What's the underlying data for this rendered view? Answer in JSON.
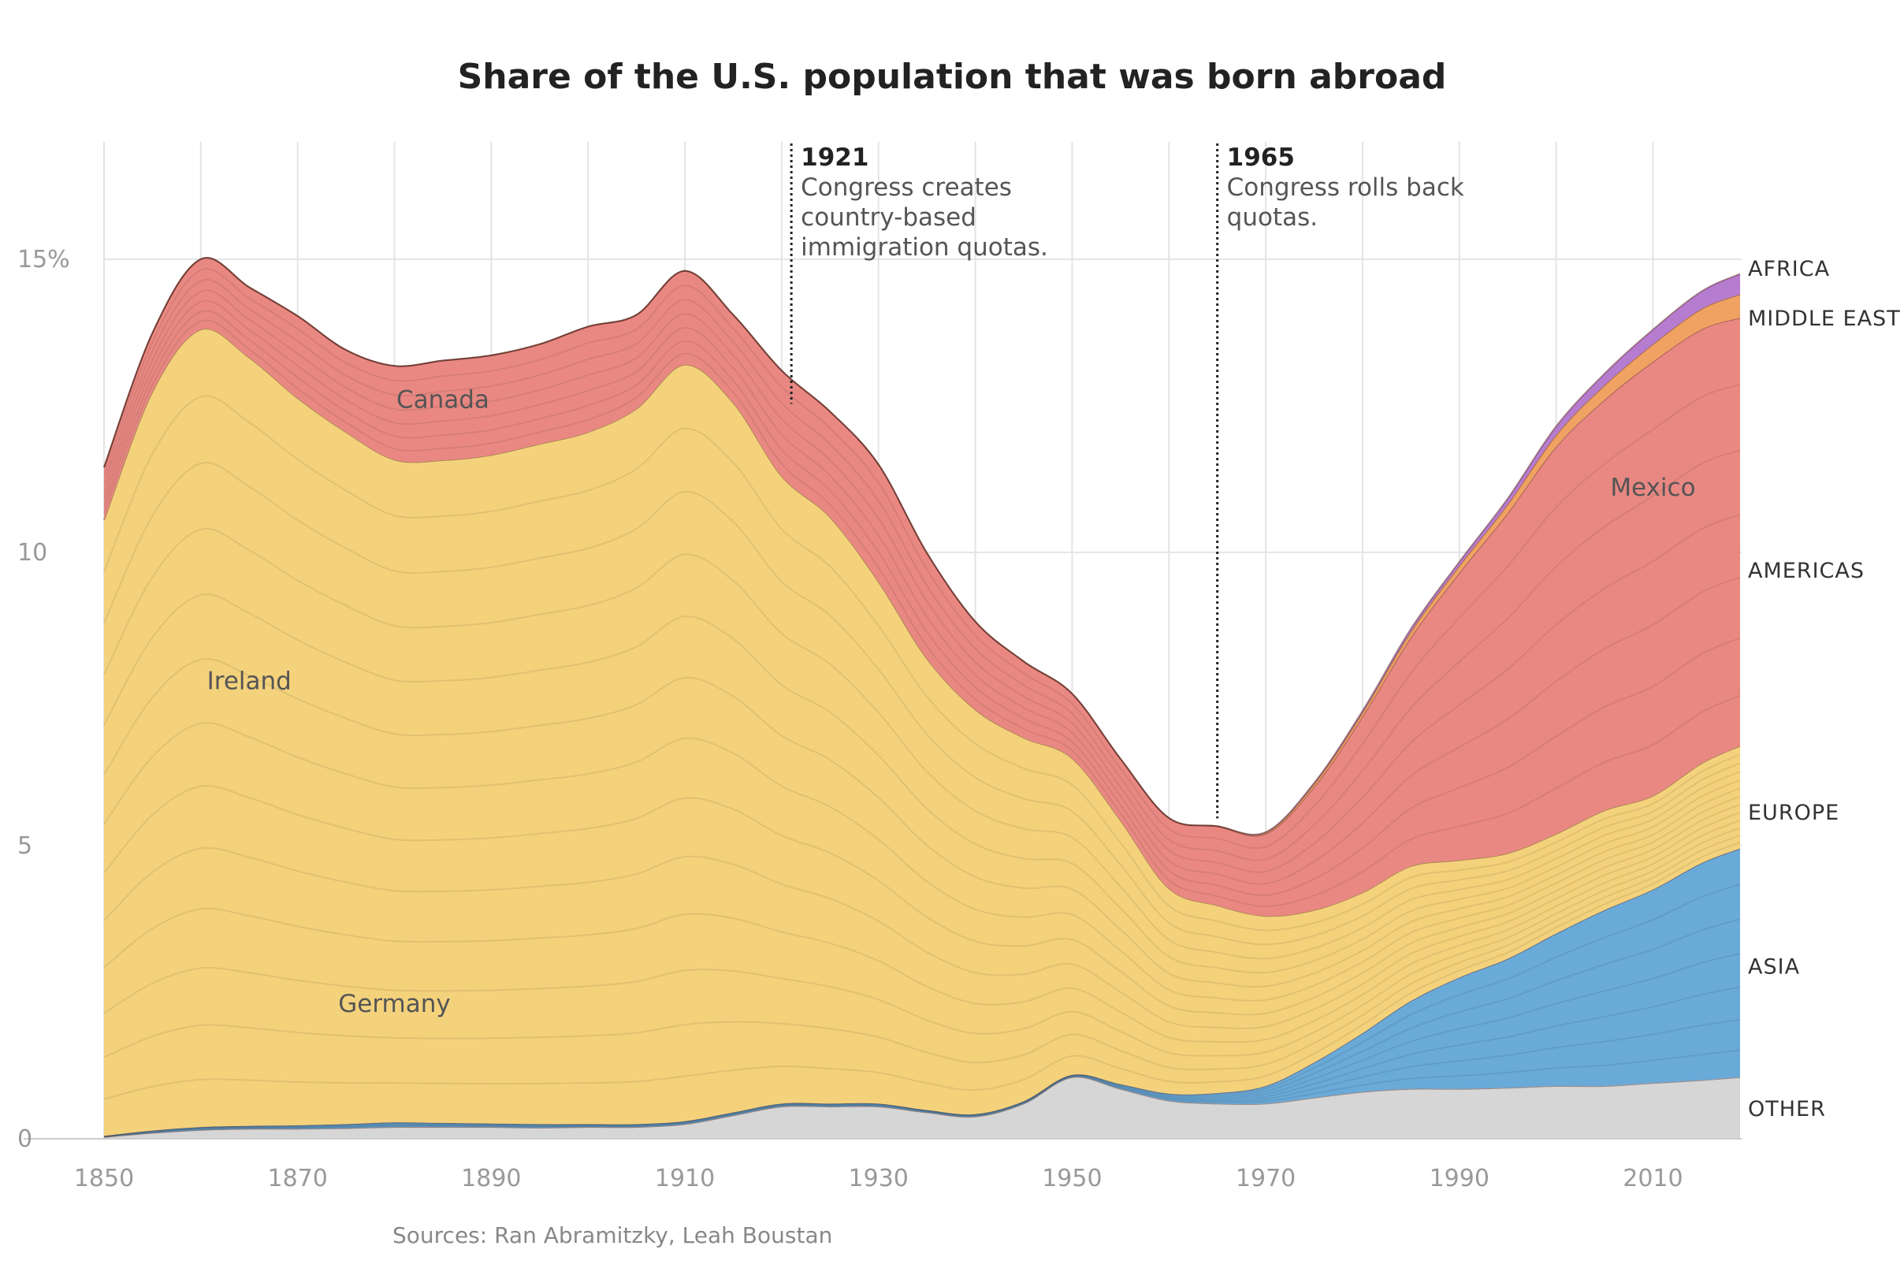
{
  "chart_data": {
    "type": "area",
    "stacked": true,
    "title": "Share of the U.S. population that was born abroad",
    "source": "Sources: Ran Abramitzky, Leah Boustan",
    "x": [
      1850,
      1855,
      1860,
      1865,
      1870,
      1875,
      1880,
      1885,
      1890,
      1895,
      1900,
      1905,
      1910,
      1915,
      1920,
      1925,
      1930,
      1935,
      1940,
      1945,
      1950,
      1955,
      1960,
      1965,
      1970,
      1975,
      1980,
      1985,
      1990,
      1995,
      2000,
      2005,
      2010,
      2015,
      2019
    ],
    "xlim": [
      1850,
      2019
    ],
    "ylim": [
      0,
      17
    ],
    "x_ticks": [
      "1850",
      "1870",
      "1890",
      "1910",
      "1930",
      "1950",
      "1970",
      "1990",
      "2010"
    ],
    "y_ticks": [
      {
        "value": 0,
        "label": "0"
      },
      {
        "value": 5,
        "label": "5"
      },
      {
        "value": 10,
        "label": "10"
      },
      {
        "value": 15,
        "label": "15%"
      }
    ],
    "grid": true,
    "series": [
      {
        "name": "OTHER",
        "color": "#d6d6d6",
        "values": [
          0.03,
          0.1,
          0.15,
          0.17,
          0.17,
          0.18,
          0.2,
          0.2,
          0.2,
          0.19,
          0.2,
          0.2,
          0.25,
          0.4,
          0.55,
          0.55,
          0.55,
          0.45,
          0.38,
          0.6,
          1.05,
          0.85,
          0.65,
          0.6,
          0.6,
          0.7,
          0.8,
          0.85,
          0.85,
          0.87,
          0.9,
          0.9,
          0.95,
          1.0,
          1.05
        ]
      },
      {
        "name": "ASIA",
        "color": "#6aaad8",
        "values": [
          0.02,
          0.04,
          0.05,
          0.05,
          0.06,
          0.07,
          0.08,
          0.07,
          0.06,
          0.06,
          0.05,
          0.05,
          0.05,
          0.05,
          0.05,
          0.05,
          0.05,
          0.04,
          0.04,
          0.04,
          0.04,
          0.08,
          0.12,
          0.18,
          0.3,
          0.6,
          1.0,
          1.5,
          1.9,
          2.2,
          2.6,
          3.0,
          3.3,
          3.7,
          3.9
        ]
      },
      {
        "name": "EUROPE",
        "color": "#f4d27c",
        "values": [
          10.5,
          12.6,
          13.6,
          13.1,
          12.4,
          11.8,
          11.3,
          11.3,
          11.4,
          11.6,
          11.8,
          12.2,
          12.9,
          12.1,
          10.7,
          10.0,
          8.9,
          7.7,
          6.9,
          6.2,
          5.4,
          4.5,
          3.5,
          3.2,
          2.9,
          2.6,
          2.4,
          2.3,
          2.0,
          1.8,
          1.7,
          1.7,
          1.6,
          1.7,
          1.75
        ]
      },
      {
        "name": "AMERICAS",
        "color": "#e98882",
        "values": [
          0.9,
          1.0,
          1.2,
          1.2,
          1.4,
          1.4,
          1.6,
          1.7,
          1.7,
          1.7,
          1.8,
          1.6,
          1.6,
          1.5,
          1.8,
          1.8,
          2.0,
          1.8,
          1.5,
          1.3,
          1.1,
          1.05,
          1.2,
          1.35,
          1.4,
          2.1,
          3.0,
          3.9,
          4.9,
          5.8,
          6.6,
          7.0,
          7.4,
          7.4,
          7.3
        ]
      },
      {
        "name": "MIDDLE EAST",
        "color": "#efa262",
        "values": [
          0,
          0,
          0,
          0,
          0,
          0,
          0,
          0,
          0,
          0,
          0,
          0,
          0,
          0,
          0,
          0,
          0,
          0,
          0,
          0,
          0,
          0,
          0,
          0,
          0.02,
          0.05,
          0.07,
          0.1,
          0.12,
          0.15,
          0.2,
          0.25,
          0.3,
          0.35,
          0.4
        ]
      },
      {
        "name": "AFRICA",
        "color": "#b67cd0",
        "values": [
          0,
          0,
          0,
          0,
          0,
          0,
          0,
          0,
          0,
          0,
          0,
          0,
          0,
          0,
          0,
          0,
          0,
          0,
          0,
          0,
          0,
          0,
          0,
          0,
          0.01,
          0.02,
          0.03,
          0.05,
          0.07,
          0.1,
          0.15,
          0.2,
          0.25,
          0.3,
          0.35
        ]
      }
    ],
    "inline_labels": [
      {
        "text": "Canada",
        "x": 1885,
        "y": 12.6
      },
      {
        "text": "Ireland",
        "x": 1865,
        "y": 7.8
      },
      {
        "text": "Germany",
        "x": 1880,
        "y": 2.3
      },
      {
        "text": "Mexico",
        "x": 2010,
        "y": 11.1
      }
    ],
    "annotations": [
      {
        "year": 1921,
        "label": "1921",
        "lines": [
          "Congress creates",
          "country-based",
          "immigration quotas."
        ]
      },
      {
        "year": 1965,
        "label": "1965",
        "lines": [
          "Congress rolls back",
          "quotas."
        ]
      }
    ]
  }
}
